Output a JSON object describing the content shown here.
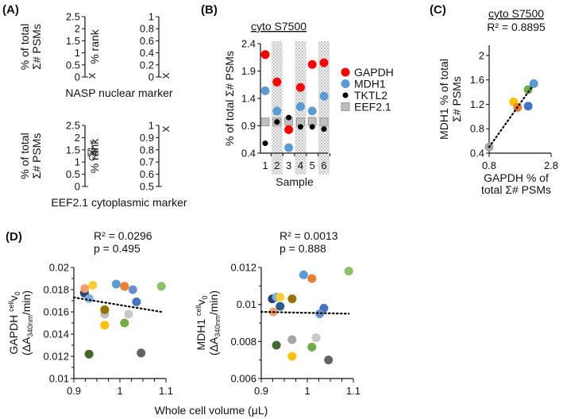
{
  "panels": {
    "a": "(A)",
    "b": "(B)",
    "c": "(C)",
    "d": "(D)"
  },
  "chart_data": [
    {
      "id": "A-NASP",
      "type": "scatter",
      "caption": "NASP nuclear marker",
      "subplots": [
        {
          "ylabel": [
            "% of total",
            "Σ# PSMs"
          ],
          "ylim": [
            0,
            2.5
          ],
          "yticks": [
            "0",
            "0.5",
            "1",
            "1.5",
            "2",
            "2.5"
          ],
          "value": 0.05,
          "marker": "x"
        },
        {
          "ylabel": [
            "% rank"
          ],
          "ylim": [
            0,
            1
          ],
          "yticks": [
            "0",
            "0.2",
            "0.4",
            "0.6",
            "0.8",
            "1"
          ],
          "value": 0.02,
          "marker": "x"
        }
      ]
    },
    {
      "id": "A-EEF2.1",
      "type": "scatter",
      "caption": "EEF2.1 cytoplasmic marker",
      "subplots": [
        {
          "ylabel": [
            "% of total",
            "Σ# PSMs"
          ],
          "ylim": [
            0,
            2.5
          ],
          "yticks": [
            "0",
            "0.5",
            "1",
            "1.5",
            "2",
            "2.5"
          ],
          "value": 1.4,
          "box": [
            1.25,
            1.55
          ],
          "whisker": [
            1.25,
            1.85
          ],
          "marker": "x"
        },
        {
          "ylabel": [
            "% rank"
          ],
          "ylim": [
            0.5,
            1
          ],
          "yticks": [
            "0.5",
            "0.6",
            "0.7",
            "0.8",
            "0.9",
            "1"
          ],
          "value": 0.97,
          "marker": "x"
        }
      ]
    },
    {
      "id": "B",
      "type": "scatter",
      "title": "cyto S7500",
      "xlabel": "Sample",
      "ylabel": "% of total Σ# PSMs",
      "ylim": [
        0.4,
        2.4
      ],
      "yticks": [
        "0.4",
        "0.9",
        "1.4",
        "1.9",
        "2.4"
      ],
      "categories": [
        "1",
        "2",
        "3",
        "4",
        "5",
        "6"
      ],
      "shaded_samples": [
        "2",
        "4",
        "6"
      ],
      "legend": "right",
      "series": [
        {
          "name": "GAPDH",
          "color": "#ff0000",
          "marker": "circle-large",
          "values": [
            2.2,
            1.7,
            0.83,
            1.6,
            2.02,
            2.05
          ]
        },
        {
          "name": "MDH1",
          "color": "#5b9bd5",
          "marker": "circle-large",
          "values": [
            1.54,
            1.17,
            0.5,
            1.25,
            1.17,
            1.44
          ]
        },
        {
          "name": "TKTL2",
          "color": "#000000",
          "marker": "circle-small",
          "values": [
            0.58,
            0.97,
            1.05,
            0.88,
            0.88,
            0.84
          ]
        },
        {
          "name": "EEF2.1",
          "color": "#bfbfbf",
          "marker": "square",
          "values": [
            0.97,
            0.97,
            0.98,
            0.97,
            0.98,
            0.97
          ]
        }
      ]
    },
    {
      "id": "C",
      "type": "scatter",
      "title": "cyto S7500",
      "annotation": "R² = 0.8895",
      "xlabel": [
        "GAPDH % of",
        "total Σ# PSMs"
      ],
      "ylabel": [
        "MDH1 % of total",
        "Σ# PSMs"
      ],
      "xlim": [
        0.8,
        2.8
      ],
      "ylim": [
        0.4,
        2.2
      ],
      "xticks": [
        "0.8",
        "2.8"
      ],
      "yticks": [
        "0.4",
        "0.8",
        "1.2",
        "1.6",
        "2"
      ],
      "trendline": [
        [
          0.8,
          0.5
        ],
        [
          2.2,
          1.5
        ]
      ],
      "points": [
        {
          "x": 0.8,
          "y": 0.5,
          "color": "#a5a5a5"
        },
        {
          "x": 1.59,
          "y": 1.24,
          "color": "#ffc000"
        },
        {
          "x": 1.72,
          "y": 1.15,
          "color": "#ed7d31"
        },
        {
          "x": 2.06,
          "y": 1.17,
          "color": "#4472c4"
        },
        {
          "x": 2.06,
          "y": 1.44,
          "color": "#70ad47"
        },
        {
          "x": 2.24,
          "y": 1.54,
          "color": "#5b9bd5"
        }
      ]
    },
    {
      "id": "D-GAPDH",
      "type": "scatter",
      "annotation": [
        "R² = 0.0296",
        "p = 0.495"
      ],
      "ylabel": {
        "main": "GAPDH ",
        "sup": "cell",
        "v": "v",
        "sub0": "0",
        "unit_pre": "(ΔA",
        "unit_sub": "340nm",
        "unit_post": "/min)"
      },
      "xlim": [
        0.9,
        1.1
      ],
      "ylim": [
        0.01,
        0.02
      ],
      "xticks": [
        "0.9",
        "1",
        "1.1"
      ],
      "yticks": [
        "0.01",
        "0.012",
        "0.014",
        "0.016",
        "0.018",
        "0.02"
      ],
      "trendline": [
        [
          0.9,
          0.0173
        ],
        [
          1.09,
          0.016
        ]
      ],
      "points": [
        {
          "x": 0.923,
          "y": 0.0177,
          "color": "#264478"
        },
        {
          "x": 0.924,
          "y": 0.0181,
          "color": "#f4a06a"
        },
        {
          "x": 0.933,
          "y": 0.0172,
          "color": "#7cafdd"
        },
        {
          "x": 0.941,
          "y": 0.0184,
          "color": "#ffcd33"
        },
        {
          "x": 0.967,
          "y": 0.0158,
          "color": "#bfbfbf"
        },
        {
          "x": 0.967,
          "y": 0.0162,
          "color": "#997300"
        },
        {
          "x": 0.967,
          "y": 0.0148,
          "color": "#ffc000"
        },
        {
          "x": 0.933,
          "y": 0.0122,
          "color": "#43682b"
        },
        {
          "x": 0.992,
          "y": 0.0185,
          "color": "#5b9bd5"
        },
        {
          "x": 1.01,
          "y": 0.0183,
          "color": "#ed7d31"
        },
        {
          "x": 1.028,
          "y": 0.018,
          "color": "#698ed0"
        },
        {
          "x": 1.036,
          "y": 0.0169,
          "color": "#4472c4"
        },
        {
          "x": 1.019,
          "y": 0.0158,
          "color": "#c9c9c9"
        },
        {
          "x": 1.01,
          "y": 0.015,
          "color": "#70ad47"
        },
        {
          "x": 1.046,
          "y": 0.0123,
          "color": "#636363"
        },
        {
          "x": 1.09,
          "y": 0.0183,
          "color": "#8cc168"
        }
      ]
    },
    {
      "id": "D-MDH1",
      "type": "scatter",
      "annotation": [
        "R² = 0.0013",
        "p = 0.888"
      ],
      "ylabel": {
        "main": "MDH1 ",
        "sup": "cell",
        "v": "v",
        "sub0": "0",
        "unit_pre": "(ΔA",
        "unit_sub": "340nm",
        "unit_post": "/min)"
      },
      "xlim": [
        0.9,
        1.1
      ],
      "ylim": [
        0.006,
        0.012
      ],
      "xticks": [
        "0.9",
        "1",
        "1.1"
      ],
      "yticks": [
        "0.006",
        "0.008",
        "0.01",
        "0.012"
      ],
      "trendline": [
        [
          0.9,
          0.0096
        ],
        [
          1.09,
          0.0095
        ]
      ],
      "points": [
        {
          "x": 0.924,
          "y": 0.0103,
          "color": "#264478"
        },
        {
          "x": 0.933,
          "y": 0.0104,
          "color": "#7cafdd"
        },
        {
          "x": 0.941,
          "y": 0.0104,
          "color": "#ffcd33"
        },
        {
          "x": 0.967,
          "y": 0.0103,
          "color": "#997300"
        },
        {
          "x": 0.941,
          "y": 0.0099,
          "color": "#255e91"
        },
        {
          "x": 0.926,
          "y": 0.0096,
          "color": "#f4a06a"
        },
        {
          "x": 0.992,
          "y": 0.0116,
          "color": "#5b9bd5"
        },
        {
          "x": 1.01,
          "y": 0.0114,
          "color": "#ed7d31"
        },
        {
          "x": 1.09,
          "y": 0.0118,
          "color": "#8cc168"
        },
        {
          "x": 1.036,
          "y": 0.0098,
          "color": "#4472c4"
        },
        {
          "x": 1.027,
          "y": 0.0095,
          "color": "#698ed0"
        },
        {
          "x": 0.967,
          "y": 0.0081,
          "color": "#a5a5a5"
        },
        {
          "x": 1.019,
          "y": 0.0082,
          "color": "#c9c9c9"
        },
        {
          "x": 0.933,
          "y": 0.0078,
          "color": "#43682b"
        },
        {
          "x": 1.01,
          "y": 0.0077,
          "color": "#70ad47"
        },
        {
          "x": 0.967,
          "y": 0.0072,
          "color": "#ffc000"
        },
        {
          "x": 1.046,
          "y": 0.007,
          "color": "#636363"
        }
      ]
    }
  ],
  "shared_xlabel_d": "Whole cell volume (μL)"
}
